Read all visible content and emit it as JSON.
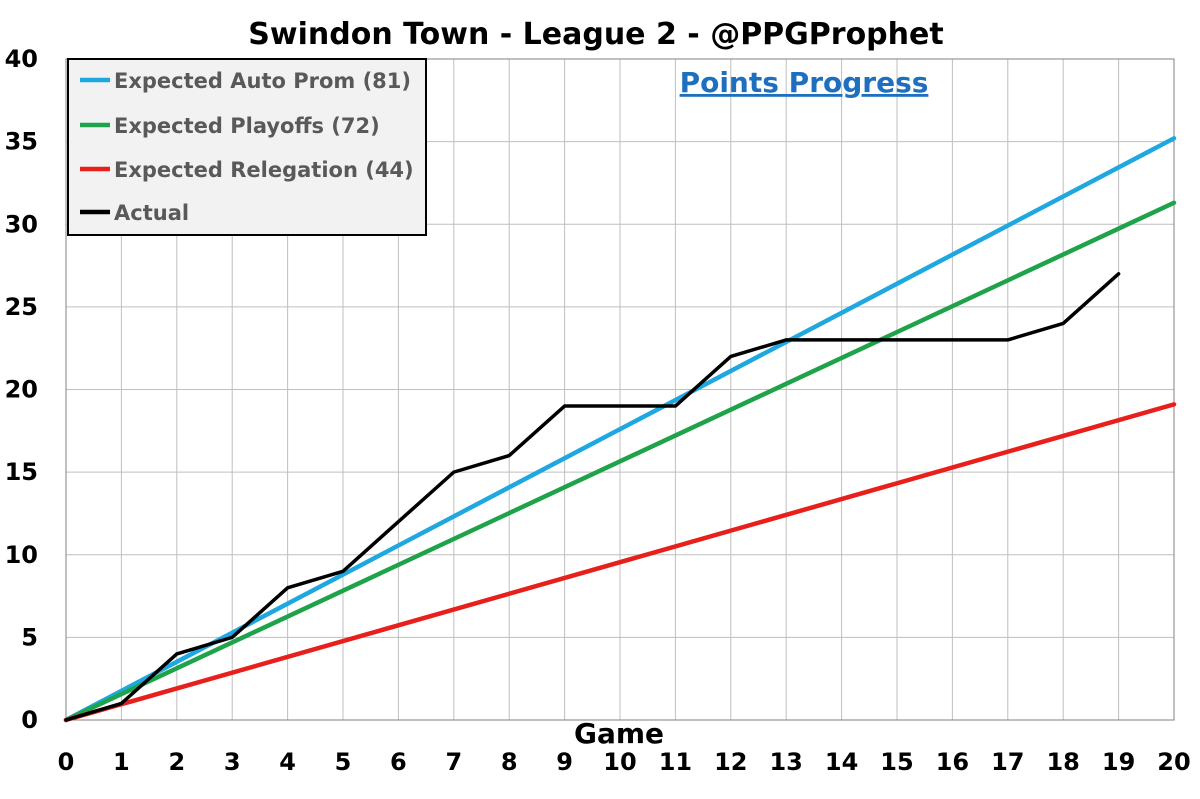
{
  "chart_data": {
    "type": "line",
    "title": "Swindon Town - League 2 - @PPGProphet",
    "subtitle": "Points Progress",
    "xlabel": "Game",
    "ylabel": "",
    "xlim": [
      0,
      20
    ],
    "ylim": [
      0,
      40
    ],
    "x_ticks": [
      "0",
      "1",
      "2",
      "3",
      "4",
      "5",
      "6",
      "7",
      "8",
      "9",
      "10",
      "11",
      "12",
      "13",
      "14",
      "15",
      "16",
      "17",
      "18",
      "19",
      "20"
    ],
    "y_ticks": [
      "0",
      "5",
      "10",
      "15",
      "20",
      "25",
      "30",
      "35",
      "40"
    ],
    "grid": true,
    "legend_position": "top-left",
    "series": [
      {
        "name": "Expected Auto Prom (81)",
        "color": "#1fa7e0",
        "x": [
          0,
          20
        ],
        "y": [
          0,
          35.2
        ]
      },
      {
        "name": "Expected Playoffs (72)",
        "color": "#1fa34a",
        "x": [
          0,
          20
        ],
        "y": [
          0,
          31.3
        ]
      },
      {
        "name": "Expected Relegation (44)",
        "color": "#e8201c",
        "x": [
          0,
          20
        ],
        "y": [
          0,
          19.1
        ]
      },
      {
        "name": "Actual",
        "color": "#000000",
        "x": [
          0,
          1,
          2,
          3,
          4,
          5,
          6,
          7,
          8,
          9,
          10,
          11,
          12,
          13,
          14,
          15,
          16,
          17,
          18,
          19
        ],
        "y": [
          0,
          1,
          4,
          5,
          8,
          9,
          12,
          15,
          16,
          19,
          19,
          19,
          22,
          23,
          23,
          23,
          23,
          23,
          24,
          27
        ]
      }
    ]
  }
}
